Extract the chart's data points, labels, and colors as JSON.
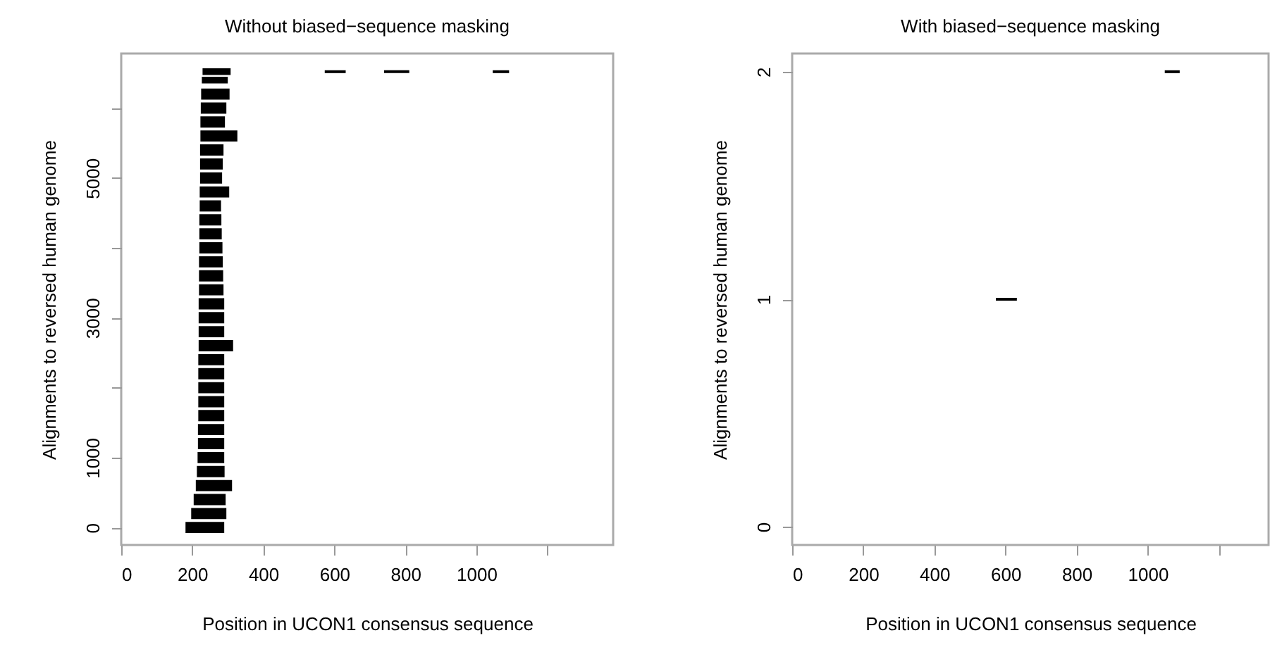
{
  "chart_data": [
    {
      "type": "line",
      "title": "Without biased−sequence masking",
      "xlabel": "Position in UCON1 consensus sequence",
      "ylabel": "Alignments to reversed human genome",
      "xlim": [
        0,
        1385
      ],
      "xticks": [
        0,
        200,
        400,
        600,
        800,
        1000,
        {
          "value": 1200,
          "label": null
        }
      ],
      "ylim": [
        -250,
        6780
      ],
      "yticks": [
        0,
        1000,
        {
          "value": 2000,
          "label": null
        },
        3000,
        {
          "value": 4000,
          "label": null
        },
        5000,
        {
          "value": 6000,
          "label": null
        }
      ],
      "series": [
        {
          "color": "#000000",
          "x": [
            181,
            290
          ],
          "values": [
            0,
            0
          ]
        },
        {
          "color": "#000000",
          "x": [
            197,
            296
          ],
          "values": [
            200,
            200
          ]
        },
        {
          "color": "#000000",
          "x": [
            204,
            294
          ],
          "values": [
            400,
            400
          ]
        },
        {
          "color": "#000000",
          "x": [
            210,
            312
          ],
          "values": [
            600,
            600
          ]
        },
        {
          "color": "#000000",
          "x": [
            213,
            291
          ],
          "values": [
            800,
            800
          ]
        },
        {
          "color": "#000000",
          "x": [
            215,
            290
          ],
          "values": [
            1000,
            1000
          ]
        },
        {
          "color": "#000000",
          "x": [
            216,
            290
          ],
          "values": [
            1200,
            1200
          ]
        },
        {
          "color": "#000000",
          "x": [
            216,
            290
          ],
          "values": [
            1400,
            1400
          ]
        },
        {
          "color": "#000000",
          "x": [
            217,
            290
          ],
          "values": [
            1600,
            1600
          ]
        },
        {
          "color": "#000000",
          "x": [
            217,
            290
          ],
          "values": [
            1800,
            1800
          ]
        },
        {
          "color": "#000000",
          "x": [
            217,
            290
          ],
          "values": [
            2000,
            2000
          ]
        },
        {
          "color": "#000000",
          "x": [
            217,
            290
          ],
          "values": [
            2200,
            2200
          ]
        },
        {
          "color": "#000000",
          "x": [
            217,
            290
          ],
          "values": [
            2400,
            2400
          ]
        },
        {
          "color": "#000000",
          "x": [
            218,
            315
          ],
          "values": [
            2600,
            2600
          ]
        },
        {
          "color": "#000000",
          "x": [
            218,
            290
          ],
          "values": [
            2800,
            2800
          ]
        },
        {
          "color": "#000000",
          "x": [
            218,
            290
          ],
          "values": [
            3000,
            3000
          ]
        },
        {
          "color": "#000000",
          "x": [
            218,
            290
          ],
          "values": [
            3200,
            3200
          ]
        },
        {
          "color": "#000000",
          "x": [
            219,
            288
          ],
          "values": [
            3400,
            3400
          ]
        },
        {
          "color": "#000000",
          "x": [
            219,
            287
          ],
          "values": [
            3600,
            3600
          ]
        },
        {
          "color": "#000000",
          "x": [
            219,
            286
          ],
          "values": [
            3800,
            3800
          ]
        },
        {
          "color": "#000000",
          "x": [
            220,
            285
          ],
          "values": [
            4000,
            4000
          ]
        },
        {
          "color": "#000000",
          "x": [
            220,
            283
          ],
          "values": [
            4200,
            4200
          ]
        },
        {
          "color": "#000000",
          "x": [
            220,
            282
          ],
          "values": [
            4400,
            4400
          ]
        },
        {
          "color": "#000000",
          "x": [
            221,
            281
          ],
          "values": [
            4600,
            4600
          ]
        },
        {
          "color": "#000000",
          "x": [
            221,
            304
          ],
          "values": [
            4800,
            4800
          ]
        },
        {
          "color": "#000000",
          "x": [
            222,
            284
          ],
          "values": [
            5000,
            5000
          ]
        },
        {
          "color": "#000000",
          "x": [
            222,
            286
          ],
          "values": [
            5200,
            5200
          ]
        },
        {
          "color": "#000000",
          "x": [
            222,
            288
          ],
          "values": [
            5400,
            5400
          ]
        },
        {
          "color": "#000000",
          "x": [
            223,
            327
          ],
          "values": [
            5600,
            5600
          ]
        },
        {
          "color": "#000000",
          "x": [
            223,
            292
          ],
          "values": [
            5800,
            5800
          ]
        },
        {
          "color": "#000000",
          "x": [
            224,
            296
          ],
          "values": [
            6000,
            6000
          ]
        },
        {
          "color": "#000000",
          "x": [
            225,
            305
          ],
          "values": [
            6200,
            6200
          ]
        },
        {
          "color": "#000000",
          "x": [
            227,
            300
          ],
          "values": [
            6400,
            6400
          ]
        },
        {
          "color": "#000000",
          "x": [
            229,
            308
          ],
          "values": [
            6520,
            6520
          ]
        },
        {
          "color": "#000000",
          "x": [
            573,
            632
          ],
          "values": [
            6520,
            6520
          ]
        },
        {
          "color": "#000000",
          "x": [
            740,
            811
          ],
          "values": [
            6520,
            6520
          ]
        },
        {
          "color": "#000000",
          "x": [
            1046,
            1092
          ],
          "values": [
            6520,
            6520
          ]
        }
      ]
    },
    {
      "type": "line",
      "title": "With biased−sequence masking",
      "xlabel": "Position in UCON1 consensus sequence",
      "ylabel": "Alignments to reversed human genome",
      "xlim": [
        0,
        1340
      ],
      "xticks": [
        0,
        200,
        400,
        600,
        800,
        1000,
        {
          "value": 1200,
          "label": null
        }
      ],
      "ylim": [
        -0.08,
        2.08
      ],
      "yticks": [
        0,
        1,
        2
      ],
      "series": [
        {
          "color": "#000000",
          "x": [
            573,
            632
          ],
          "values": [
            1,
            1
          ]
        },
        {
          "color": "#000000",
          "x": [
            1048,
            1090
          ],
          "values": [
            2,
            2
          ]
        }
      ]
    }
  ]
}
